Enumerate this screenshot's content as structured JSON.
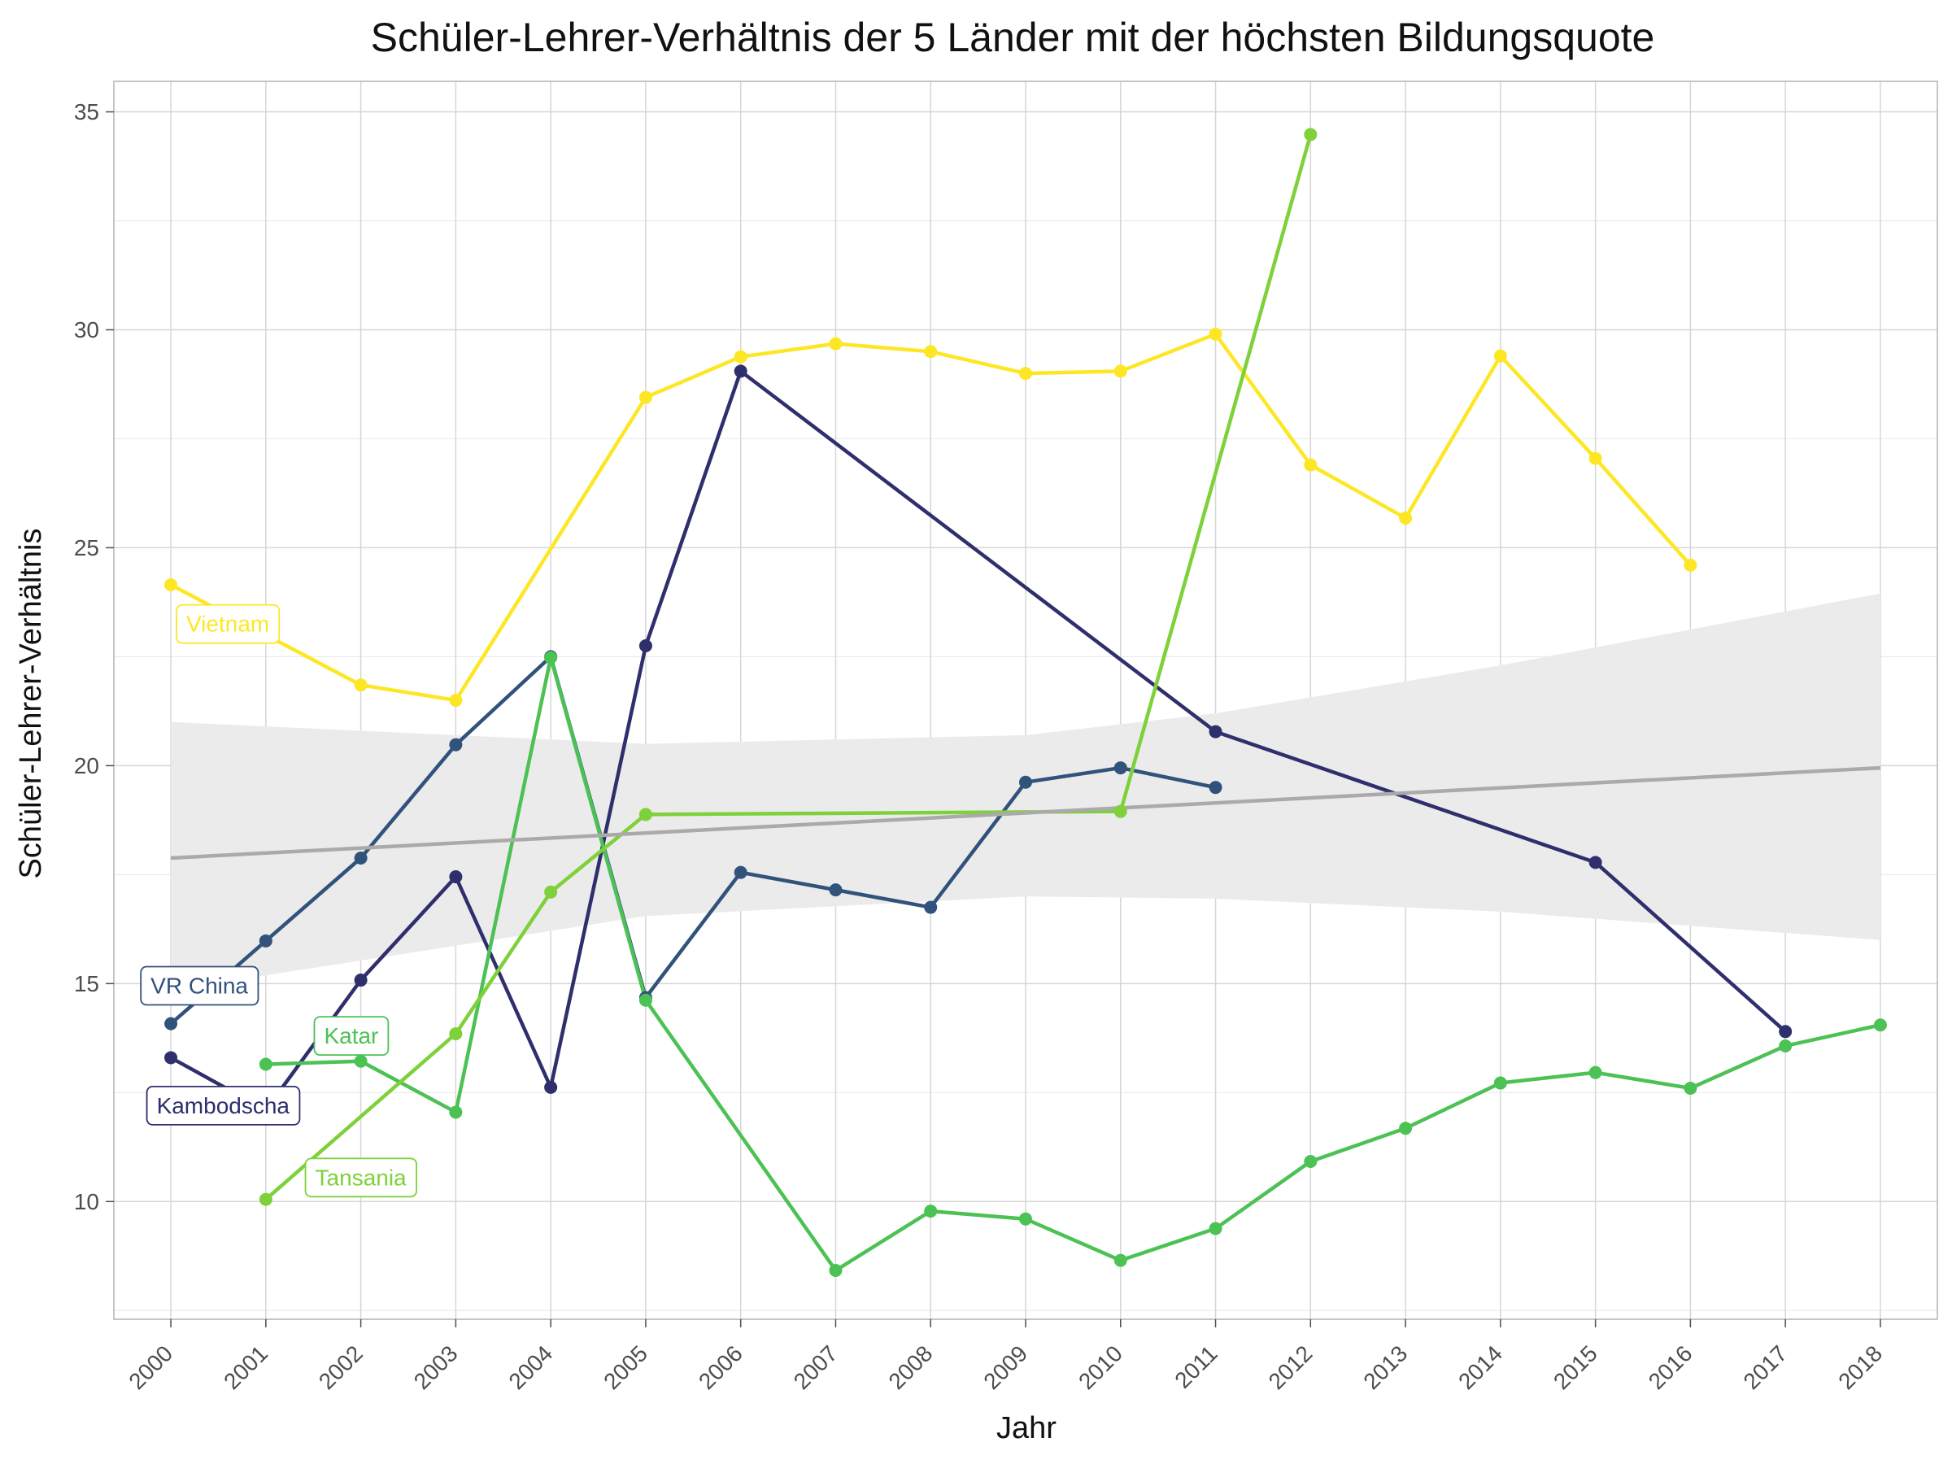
{
  "chart_data": {
    "type": "line",
    "title": "Schüler-Lehrer-Verhältnis der 5 Länder mit der höchsten Bildungsquote",
    "xlabel": "Jahr",
    "ylabel": "Schüler-Lehrer-Verhältnis",
    "xlim": [
      1999.4,
      2018.6
    ],
    "ylim": [
      7.3,
      35.7
    ],
    "x_ticks": [
      2000,
      2001,
      2002,
      2003,
      2004,
      2005,
      2006,
      2007,
      2008,
      2009,
      2010,
      2011,
      2012,
      2013,
      2014,
      2015,
      2016,
      2017,
      2018
    ],
    "y_ticks": [
      10,
      15,
      20,
      25,
      30,
      35
    ],
    "grid": true,
    "legend": "direct labels",
    "series": [
      {
        "name": "Vietnam",
        "color": "#fde725",
        "points": [
          [
            2000,
            24.15
          ],
          [
            2002,
            21.85
          ],
          [
            2003,
            21.5
          ],
          [
            2005,
            28.45
          ],
          [
            2006,
            29.38
          ],
          [
            2007,
            29.68
          ],
          [
            2008,
            29.5
          ],
          [
            2009,
            29.0
          ],
          [
            2010,
            29.05
          ],
          [
            2011,
            29.9
          ],
          [
            2012,
            26.9
          ],
          [
            2013,
            25.68
          ],
          [
            2014,
            29.4
          ],
          [
            2015,
            27.05
          ],
          [
            2016,
            24.6
          ]
        ]
      },
      {
        "name": "VR China",
        "color": "#31527b",
        "points": [
          [
            2000,
            14.08
          ],
          [
            2001,
            15.98
          ],
          [
            2002,
            17.88
          ],
          [
            2003,
            20.48
          ],
          [
            2004,
            22.5
          ],
          [
            2005,
            14.68
          ],
          [
            2006,
            17.55
          ],
          [
            2007,
            17.15
          ],
          [
            2008,
            16.75
          ],
          [
            2009,
            19.62
          ],
          [
            2010,
            19.95
          ],
          [
            2011,
            19.5
          ]
        ]
      },
      {
        "name": "Kambodscha",
        "color": "#2e2f6c",
        "points": [
          [
            2000,
            13.3
          ],
          [
            2001,
            12.1
          ],
          [
            2002,
            15.08
          ],
          [
            2003,
            17.45
          ],
          [
            2004,
            12.62
          ],
          [
            2005,
            22.75
          ],
          [
            2006,
            29.05
          ],
          [
            2011,
            20.78
          ],
          [
            2015,
            17.78
          ],
          [
            2017,
            13.9
          ]
        ]
      },
      {
        "name": "Katar",
        "color": "#4cc154",
        "points": [
          [
            2001,
            13.15
          ],
          [
            2002,
            13.22
          ],
          [
            2003,
            12.05
          ],
          [
            2004,
            22.48
          ],
          [
            2005,
            14.62
          ],
          [
            2007,
            8.42
          ],
          [
            2008,
            9.78
          ],
          [
            2009,
            9.6
          ],
          [
            2010,
            8.65
          ],
          [
            2011,
            9.38
          ],
          [
            2012,
            10.92
          ],
          [
            2013,
            11.68
          ],
          [
            2014,
            12.72
          ],
          [
            2015,
            12.96
          ],
          [
            2016,
            12.6
          ],
          [
            2017,
            13.57
          ],
          [
            2018,
            14.05
          ]
        ]
      },
      {
        "name": "Tansania",
        "color": "#7ed13a",
        "points": [
          [
            2001,
            10.05
          ],
          [
            2003,
            13.85
          ],
          [
            2004,
            17.1
          ],
          [
            2005,
            18.88
          ],
          [
            2010,
            18.95
          ],
          [
            2012,
            34.48
          ]
        ]
      }
    ],
    "trend": {
      "type": "linear regression with confidence band",
      "color": "#aaaaaa",
      "band_color": "#ebebeb",
      "points": [
        [
          2000,
          17.88
        ],
        [
          2018,
          19.95
        ]
      ],
      "band": [
        [
          2000,
          14.85,
          21.0
        ],
        [
          2005,
          16.55,
          20.5
        ],
        [
          2009,
          17.0,
          20.7
        ],
        [
          2011,
          16.95,
          21.2
        ],
        [
          2014,
          16.65,
          22.3
        ],
        [
          2018,
          16.0,
          23.95
        ]
      ]
    },
    "labels": [
      {
        "text": "Vietnam",
        "series": "Vietnam",
        "x": 2000.6,
        "y": 23.25
      },
      {
        "text": "VR China",
        "series": "VR China",
        "x": 2000.3,
        "y": 14.95
      },
      {
        "text": "Katar",
        "series": "Katar",
        "x": 2001.9,
        "y": 13.8
      },
      {
        "text": "Kambodscha",
        "series": "Kambodscha",
        "x": 2000.55,
        "y": 12.2
      },
      {
        "text": "Tansania",
        "series": "Tansania",
        "x": 2002.0,
        "y": 10.55
      }
    ]
  }
}
